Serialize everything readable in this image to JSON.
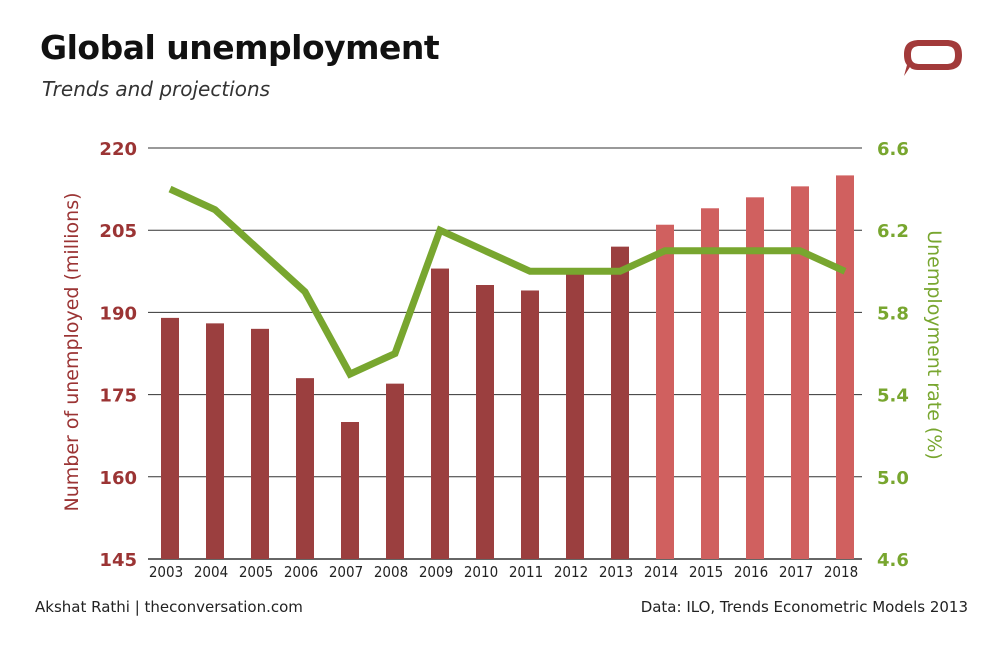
{
  "title": "Global unemployment",
  "subtitle": "Trends and projections",
  "footer": {
    "credit": "Akshat Rathi | theconversation.com",
    "source": "Data: ILO, Trends Econometric Models 2013"
  },
  "colors": {
    "bar_actual": "#9b3f3f",
    "bar_projected": "#d0605f",
    "line": "#78a62f",
    "left_axis_text": "#9b3434",
    "right_axis_text": "#78a62f",
    "gridline": "#333333",
    "logo": "#a23a3a"
  },
  "logo_icon": "conversation-speech-bubble-icon",
  "chart_data": {
    "type": "bar",
    "categories": [
      "2003",
      "2004",
      "2005",
      "2006",
      "2007",
      "2008",
      "2009",
      "2010",
      "2011",
      "2012",
      "2013",
      "2014",
      "2015",
      "2016",
      "2017",
      "2018"
    ],
    "series": [
      {
        "type": "bar",
        "axis": "left",
        "values": [
          189,
          188,
          187,
          178,
          170,
          177,
          198,
          195,
          194,
          197,
          202,
          206,
          209,
          211,
          213,
          215
        ],
        "projected_from": "2014"
      },
      {
        "type": "line",
        "axis": "right",
        "values": [
          6.4,
          6.3,
          6.1,
          5.9,
          5.5,
          5.6,
          6.2,
          6.1,
          6.0,
          6.0,
          6.0,
          6.1,
          6.1,
          6.1,
          6.1,
          6.0
        ]
      }
    ],
    "ylabel": "Number of unemployed (millions)",
    "y2label": "Unemployment rate (%)",
    "ylim": [
      145,
      220
    ],
    "y2lim": [
      4.6,
      6.6
    ],
    "yticks": [
      "145",
      "160",
      "175",
      "190",
      "205",
      "220"
    ],
    "y2ticks": [
      "4.6",
      "5.0",
      "5.4",
      "5.8",
      "6.2",
      "6.6"
    ],
    "grid": true
  }
}
